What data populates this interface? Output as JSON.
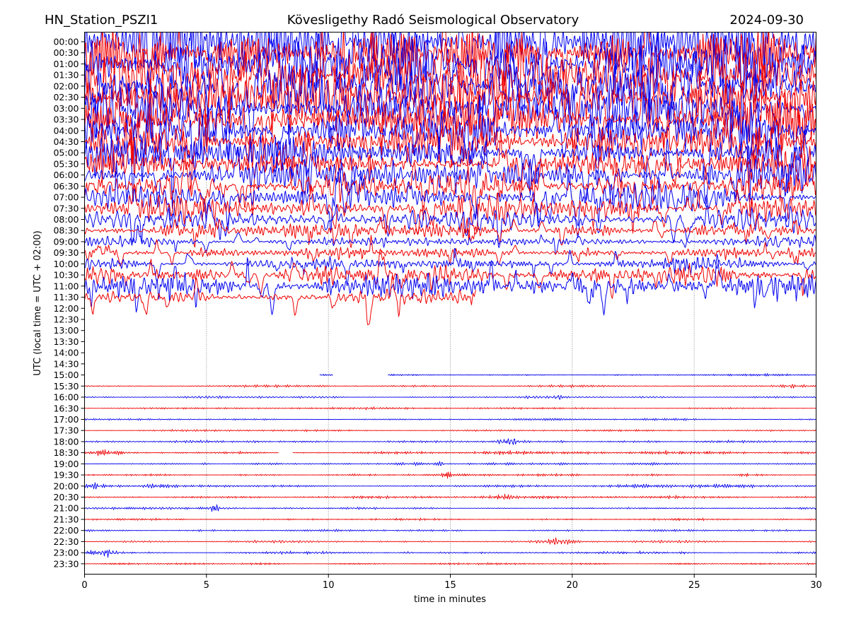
{
  "header": {
    "station": "HN_Station_PSZI1",
    "observatory": "Kövesligethy Radó Seismological Observatory",
    "date": "2024-09-30"
  },
  "chart_data": {
    "type": "line",
    "kind": "helicorder-seismogram",
    "title": "Kövesligethy Radó Seismological Observatory",
    "station": "HN_Station_PSZI1",
    "date": "2024-09-30",
    "xlabel": "time in minutes",
    "ylabel": "UTC (local time = UTC + 02:00)",
    "x_range": [
      0,
      30
    ],
    "x_ticks": [
      0,
      5,
      10,
      15,
      20,
      25,
      30
    ],
    "gridlines_minutes": [
      5,
      10,
      15,
      20,
      25
    ],
    "grid_style": "dotted-vertical",
    "colors": {
      "blue": "#0000f0",
      "red": "#f00000",
      "grid": "#777777",
      "frame": "#000000"
    },
    "row_minutes": 30,
    "rows": [
      {
        "label": "00:00",
        "color": "blue",
        "type": "noisy",
        "amp": 40,
        "segments": [
          [
            0,
            30
          ]
        ],
        "bursts": []
      },
      {
        "label": "00:30",
        "color": "red",
        "type": "noisy",
        "amp": 42,
        "segments": [
          [
            0,
            30
          ]
        ],
        "bursts": []
      },
      {
        "label": "01:00",
        "color": "blue",
        "type": "noisy",
        "amp": 46,
        "segments": [
          [
            0,
            30
          ]
        ],
        "bursts": []
      },
      {
        "label": "01:30",
        "color": "red",
        "type": "noisy",
        "amp": 46,
        "segments": [
          [
            0,
            30
          ]
        ],
        "bursts": []
      },
      {
        "label": "02:00",
        "color": "blue",
        "type": "noisy",
        "amp": 44,
        "segments": [
          [
            0,
            30
          ]
        ],
        "bursts": []
      },
      {
        "label": "02:30",
        "color": "red",
        "type": "noisy",
        "amp": 40,
        "segments": [
          [
            0,
            30
          ]
        ],
        "bursts": []
      },
      {
        "label": "03:00",
        "color": "blue",
        "type": "noisy",
        "amp": 36,
        "segments": [
          [
            0,
            30
          ]
        ],
        "bursts": []
      },
      {
        "label": "03:30",
        "color": "red",
        "type": "noisy",
        "amp": 32,
        "segments": [
          [
            0,
            30
          ]
        ],
        "bursts": []
      },
      {
        "label": "04:00",
        "color": "blue",
        "type": "noisy",
        "amp": 30,
        "segments": [
          [
            0,
            30
          ]
        ],
        "bursts": []
      },
      {
        "label": "04:30",
        "color": "red",
        "type": "noisy",
        "amp": 27,
        "segments": [
          [
            0,
            30
          ]
        ],
        "bursts": []
      },
      {
        "label": "05:00",
        "color": "blue",
        "type": "noisy",
        "amp": 26,
        "segments": [
          [
            0,
            30
          ]
        ],
        "bursts": []
      },
      {
        "label": "05:30",
        "color": "red",
        "type": "noisy",
        "amp": 23,
        "segments": [
          [
            0,
            30
          ]
        ],
        "bursts": []
      },
      {
        "label": "06:00",
        "color": "blue",
        "type": "noisy",
        "amp": 22,
        "segments": [
          [
            0,
            30
          ]
        ],
        "bursts": []
      },
      {
        "label": "06:30",
        "color": "red",
        "type": "noisy",
        "amp": 21,
        "segments": [
          [
            0,
            30
          ]
        ],
        "bursts": []
      },
      {
        "label": "07:00",
        "color": "blue",
        "type": "noisy",
        "amp": 20,
        "segments": [
          [
            0,
            30
          ]
        ],
        "bursts": []
      },
      {
        "label": "07:30",
        "color": "red",
        "type": "noisy",
        "amp": 19,
        "segments": [
          [
            0,
            30
          ]
        ],
        "bursts": []
      },
      {
        "label": "08:00",
        "color": "blue",
        "type": "noisy",
        "amp": 16,
        "segments": [
          [
            0,
            30
          ]
        ],
        "bursts": []
      },
      {
        "label": "08:30",
        "color": "red",
        "type": "noisy",
        "amp": 11,
        "segments": [
          [
            0,
            30
          ]
        ],
        "bursts": []
      },
      {
        "label": "09:00",
        "color": "blue",
        "type": "noisy",
        "amp": 7,
        "segments": [
          [
            0,
            30
          ]
        ],
        "bursts": []
      },
      {
        "label": "09:30",
        "color": "red",
        "type": "noisy",
        "amp": 8,
        "segments": [
          [
            0,
            30
          ]
        ],
        "bursts": [
          {
            "t": 1.0,
            "w": 0.8,
            "m": 1.6
          }
        ]
      },
      {
        "label": "10:00",
        "color": "blue",
        "type": "noisy",
        "amp": 9,
        "segments": [
          [
            0,
            30
          ]
        ],
        "bursts": [
          {
            "t": 10.0,
            "w": 0.3,
            "m": 1.8
          }
        ]
      },
      {
        "label": "10:30",
        "color": "red",
        "type": "noisy",
        "amp": 14,
        "segments": [
          [
            0,
            30
          ]
        ],
        "bursts": []
      },
      {
        "label": "11:00",
        "color": "blue",
        "type": "noisy",
        "amp": 18,
        "segments": [
          [
            0,
            30
          ]
        ],
        "bursts": [
          {
            "t": 10.0,
            "w": 0.3,
            "m": 1.6
          }
        ]
      },
      {
        "label": "11:30",
        "color": "red",
        "type": "noisy",
        "amp": 12,
        "segments": [
          [
            0,
            16.05
          ]
        ],
        "bursts": [
          {
            "t": 8.3,
            "w": 0.4,
            "m": 1.9
          },
          {
            "t": 15.9,
            "w": 0.2,
            "m": 2.6
          }
        ]
      },
      {
        "label": "12:00",
        "color": "blue",
        "type": "none",
        "amp": 0,
        "segments": [],
        "bursts": []
      },
      {
        "label": "12:30",
        "color": "red",
        "type": "none",
        "amp": 0,
        "segments": [],
        "bursts": []
      },
      {
        "label": "13:00",
        "color": "blue",
        "type": "none",
        "amp": 0,
        "segments": [],
        "bursts": []
      },
      {
        "label": "13:30",
        "color": "red",
        "type": "none",
        "amp": 0,
        "segments": [],
        "bursts": []
      },
      {
        "label": "14:00",
        "color": "blue",
        "type": "none",
        "amp": 0,
        "segments": [],
        "bursts": []
      },
      {
        "label": "14:30",
        "color": "red",
        "type": "none",
        "amp": 0,
        "segments": [],
        "bursts": []
      },
      {
        "label": "15:00",
        "color": "blue",
        "type": "quiet",
        "amp": 1.3,
        "segments": [
          [
            9.65,
            10.2
          ],
          [
            12.45,
            30
          ]
        ],
        "bursts": [
          {
            "t": 28.7,
            "w": 0.8,
            "m": 1.8
          }
        ]
      },
      {
        "label": "15:30",
        "color": "red",
        "type": "quiet",
        "amp": 1.5,
        "segments": [
          [
            0,
            30
          ]
        ],
        "bursts": [
          {
            "t": 9.8,
            "w": 0.3,
            "m": 1.8
          },
          {
            "t": 29.0,
            "w": 0.6,
            "m": 3.2
          }
        ]
      },
      {
        "label": "16:00",
        "color": "blue",
        "type": "quiet",
        "amp": 1.4,
        "segments": [
          [
            0,
            30
          ]
        ],
        "bursts": [
          {
            "t": 19.4,
            "w": 0.15,
            "m": 4.0
          }
        ]
      },
      {
        "label": "16:30",
        "color": "red",
        "type": "quiet",
        "amp": 1.3,
        "segments": [
          [
            0,
            30
          ]
        ],
        "bursts": [
          {
            "t": 28.5,
            "w": 0.5,
            "m": 2.0
          }
        ]
      },
      {
        "label": "17:00",
        "color": "blue",
        "type": "quiet",
        "amp": 1.3,
        "segments": [
          [
            0,
            30
          ]
        ],
        "bursts": []
      },
      {
        "label": "17:30",
        "color": "red",
        "type": "quiet",
        "amp": 1.4,
        "segments": [
          [
            0,
            30
          ]
        ],
        "bursts": []
      },
      {
        "label": "18:00",
        "color": "blue",
        "type": "quiet",
        "amp": 1.6,
        "segments": [
          [
            0,
            30
          ]
        ],
        "bursts": [
          {
            "t": 7.0,
            "w": 0.3,
            "m": 2.2
          },
          {
            "t": 17.4,
            "w": 0.4,
            "m": 3.0
          },
          {
            "t": 19.6,
            "w": 0.3,
            "m": 3.0
          },
          {
            "t": 23.4,
            "w": 0.3,
            "m": 2.2
          }
        ]
      },
      {
        "label": "18:30",
        "color": "red",
        "type": "quiet",
        "amp": 2.2,
        "segments": [
          [
            0,
            7.95
          ],
          [
            8.55,
            30
          ]
        ],
        "bursts": [
          {
            "t": 1.0,
            "w": 0.8,
            "m": 2.0
          },
          {
            "t": 13.6,
            "w": 0.8,
            "m": 1.8
          },
          {
            "t": 16.5,
            "w": 0.8,
            "m": 2.4
          }
        ]
      },
      {
        "label": "19:00",
        "color": "blue",
        "type": "quiet",
        "amp": 1.6,
        "segments": [
          [
            0,
            30
          ]
        ],
        "bursts": [
          {
            "t": 5.0,
            "w": 0.2,
            "m": 4.5
          },
          {
            "t": 14.6,
            "w": 0.3,
            "m": 2.2
          }
        ]
      },
      {
        "label": "19:30",
        "color": "red",
        "type": "quiet",
        "amp": 1.7,
        "segments": [
          [
            0,
            30
          ]
        ],
        "bursts": [
          {
            "t": 14.9,
            "w": 0.2,
            "m": 3.2
          },
          {
            "t": 27.3,
            "w": 0.4,
            "m": 2.4
          }
        ]
      },
      {
        "label": "20:00",
        "color": "blue",
        "type": "quiet",
        "amp": 2.0,
        "segments": [
          [
            0,
            30
          ]
        ],
        "bursts": [
          {
            "t": 0.5,
            "w": 0.4,
            "m": 2.0
          },
          {
            "t": 3.0,
            "w": 0.6,
            "m": 3.8
          },
          {
            "t": 22.8,
            "w": 1.2,
            "m": 1.8
          }
        ]
      },
      {
        "label": "20:30",
        "color": "red",
        "type": "quiet",
        "amp": 1.8,
        "segments": [
          [
            0,
            30
          ]
        ],
        "bursts": [
          {
            "t": 2.0,
            "w": 1.5,
            "m": 1.4
          },
          {
            "t": 17.2,
            "w": 0.3,
            "m": 2.8
          }
        ]
      },
      {
        "label": "21:00",
        "color": "blue",
        "type": "quiet",
        "amp": 1.5,
        "segments": [
          [
            0,
            30
          ]
        ],
        "bursts": [
          {
            "t": 5.3,
            "w": 0.2,
            "m": 4.2
          }
        ]
      },
      {
        "label": "21:30",
        "color": "red",
        "type": "quiet",
        "amp": 1.4,
        "segments": [
          [
            0,
            30
          ]
        ],
        "bursts": [
          {
            "t": 28.4,
            "w": 0.25,
            "m": 2.8
          }
        ]
      },
      {
        "label": "22:00",
        "color": "blue",
        "type": "quiet",
        "amp": 1.4,
        "segments": [
          [
            0,
            30
          ]
        ],
        "bursts": [
          {
            "t": 4.5,
            "w": 0.5,
            "m": 1.6
          }
        ]
      },
      {
        "label": "22:30",
        "color": "red",
        "type": "quiet",
        "amp": 1.5,
        "segments": [
          [
            0,
            30
          ]
        ],
        "bursts": [
          {
            "t": 19.5,
            "w": 0.7,
            "m": 4.5
          }
        ]
      },
      {
        "label": "23:00",
        "color": "blue",
        "type": "quiet",
        "amp": 1.6,
        "segments": [
          [
            0,
            30
          ]
        ],
        "bursts": [
          {
            "t": 0.7,
            "w": 0.5,
            "m": 4.5
          },
          {
            "t": 13.3,
            "w": 0.15,
            "m": 2.8
          },
          {
            "t": 24.6,
            "w": 0.2,
            "m": 2.2
          }
        ]
      },
      {
        "label": "23:30",
        "color": "red",
        "type": "quiet",
        "amp": 1.4,
        "segments": [
          [
            0,
            30
          ]
        ],
        "bursts": []
      }
    ]
  }
}
